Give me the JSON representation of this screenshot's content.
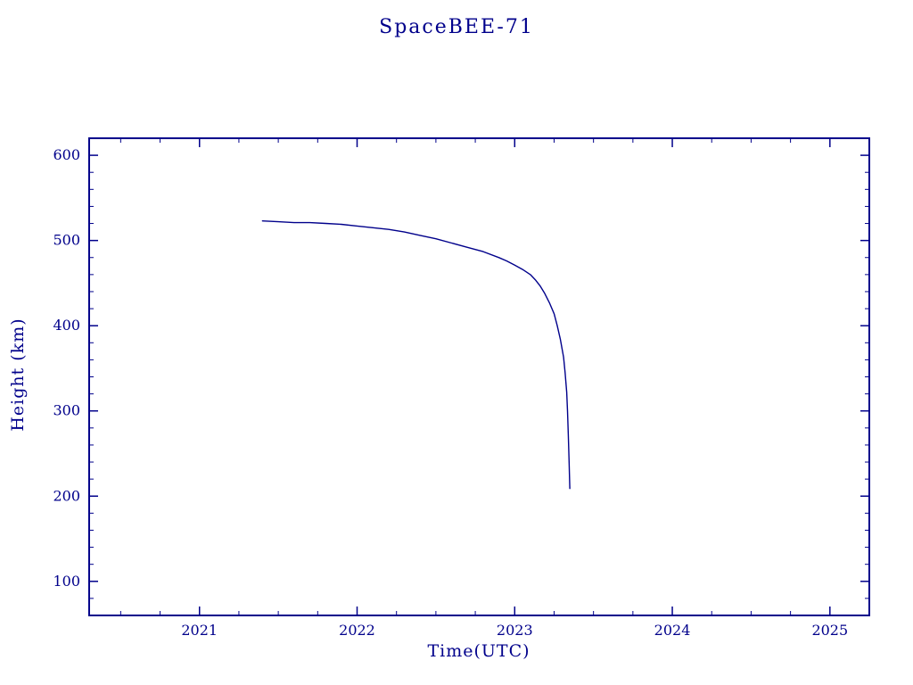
{
  "page": {
    "background": "#ffffff",
    "accent_color": "#00008b"
  },
  "chart_data": {
    "type": "line",
    "title": "SpaceBEE-71",
    "xlabel": "Time(UTC)",
    "ylabel": "Height (km)",
    "line_color": "#00008b",
    "axis_color": "#00008b",
    "grid": false,
    "legend": "none",
    "xlim": [
      2020.3,
      2025.25
    ],
    "ylim": [
      60,
      620
    ],
    "x_major_ticks": [
      2021,
      2022,
      2023,
      2024,
      2025
    ],
    "x_tick_labels": [
      "2021",
      "2022",
      "2023",
      "2024",
      "2025"
    ],
    "x_minor_step": 0.25,
    "y_major_ticks": [
      100,
      200,
      300,
      400,
      500,
      600
    ],
    "y_tick_labels": [
      "100",
      "200",
      "300",
      "400",
      "500",
      "600"
    ],
    "y_minor_step": 20,
    "series": [
      {
        "name": "height",
        "x": [
          2021.4,
          2021.5,
          2021.6,
          2021.7,
          2021.8,
          2021.9,
          2022.0,
          2022.1,
          2022.2,
          2022.3,
          2022.4,
          2022.5,
          2022.6,
          2022.7,
          2022.8,
          2022.9,
          2022.95,
          2023.0,
          2023.05,
          2023.1,
          2023.13,
          2023.16,
          2023.19,
          2023.22,
          2023.25,
          2023.27,
          2023.29,
          2023.31,
          2023.32,
          2023.33,
          2023.335,
          2023.34,
          2023.345,
          2023.35
        ],
        "y": [
          523,
          522,
          521,
          521,
          520,
          519,
          517,
          515,
          513,
          510,
          506,
          502,
          497,
          492,
          487,
          480,
          476,
          471,
          466,
          460,
          454,
          447,
          438,
          427,
          414,
          400,
          384,
          363,
          345,
          322,
          300,
          272,
          240,
          209
        ]
      }
    ]
  }
}
